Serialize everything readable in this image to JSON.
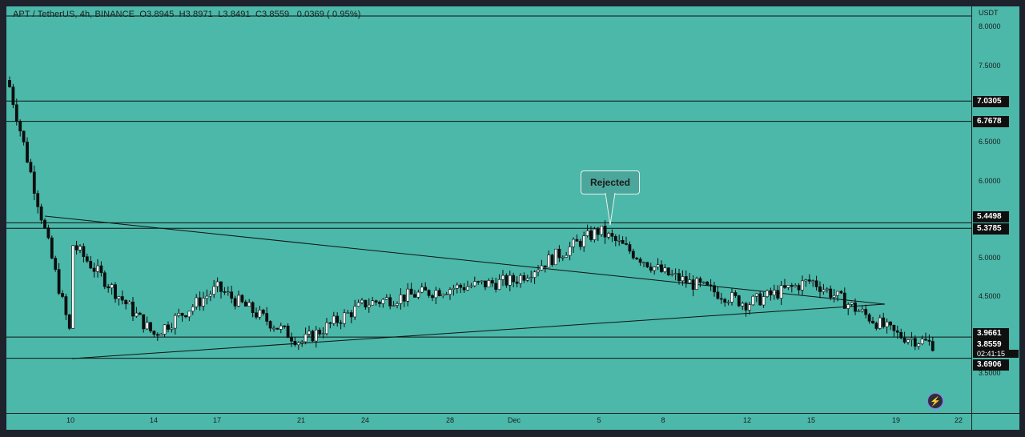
{
  "header": {
    "symbol": "APT / TetherUS",
    "timeframe": "4h",
    "exchange": "BINANCE",
    "legend_text": "APT / TetherUS, 4h, BINANCE  O3.8945  H3.8971  L3.8491  C3.8559   0.0369 ( 0.95%)"
  },
  "price_scale": {
    "currency": "USDT",
    "ticks": [
      "8.0000",
      "7.5000",
      "6.5000",
      "6.0000",
      "5.0000",
      "4.5000",
      "3.5000"
    ],
    "tags": [
      "7.0305",
      "6.7678",
      "5.4498",
      "5.3785",
      "3.9661",
      "3.8559",
      "3.6906"
    ],
    "countdown": "02:41:15"
  },
  "time_scale": {
    "ticks": [
      "10",
      "14",
      "17",
      "21",
      "24",
      "28",
      "Dec",
      "5",
      "8",
      "12",
      "15",
      "19",
      "22"
    ]
  },
  "annotation": {
    "text": "Rejected"
  },
  "icons": {
    "bottom_right": "lightning-icon"
  },
  "colors": {
    "background": "#4bb8a9",
    "candle": "#ffffff",
    "candle_down": "#0d0d0d",
    "line": "#111111"
  },
  "chart_data": {
    "type": "candlestick",
    "symbol": "APT / TetherUS",
    "interval": "4h",
    "ylim": [
      3.1,
      8.0
    ],
    "last": {
      "open": 3.8945,
      "high": 3.8971,
      "low": 3.8491,
      "close": 3.8559,
      "change": 0.0369,
      "change_pct": 0.95
    },
    "horizontal_levels": [
      7.0305,
      6.7678,
      5.4498,
      5.3785,
      3.9661,
      3.6906
    ],
    "trendlines": [
      {
        "from": [
          "10",
          5.5
        ],
        "to": [
          "Dec",
          4.85
        ]
      },
      {
        "from": [
          "10",
          3.7
        ],
        "to": [
          "15",
          4.3
        ]
      }
    ],
    "close_path": [
      {
        "x": "start",
        "close": 7.3
      },
      {
        "x": "10",
        "close": 4.0
      },
      {
        "x": "10",
        "close": 5.2
      },
      {
        "x": "14",
        "close": 4.0
      },
      {
        "x": "17",
        "close": 4.6
      },
      {
        "x": "21",
        "close": 3.9
      },
      {
        "x": "24",
        "close": 4.4
      },
      {
        "x": "28",
        "close": 4.6
      },
      {
        "x": "Dec",
        "close": 4.7
      },
      {
        "x": "5",
        "close": 5.35
      },
      {
        "x": "8",
        "close": 4.8
      },
      {
        "x": "12",
        "close": 4.4
      },
      {
        "x": "15",
        "close": 4.7
      },
      {
        "x": "19",
        "close": 4.0
      },
      {
        "x": "22",
        "close": 3.8559
      }
    ]
  }
}
